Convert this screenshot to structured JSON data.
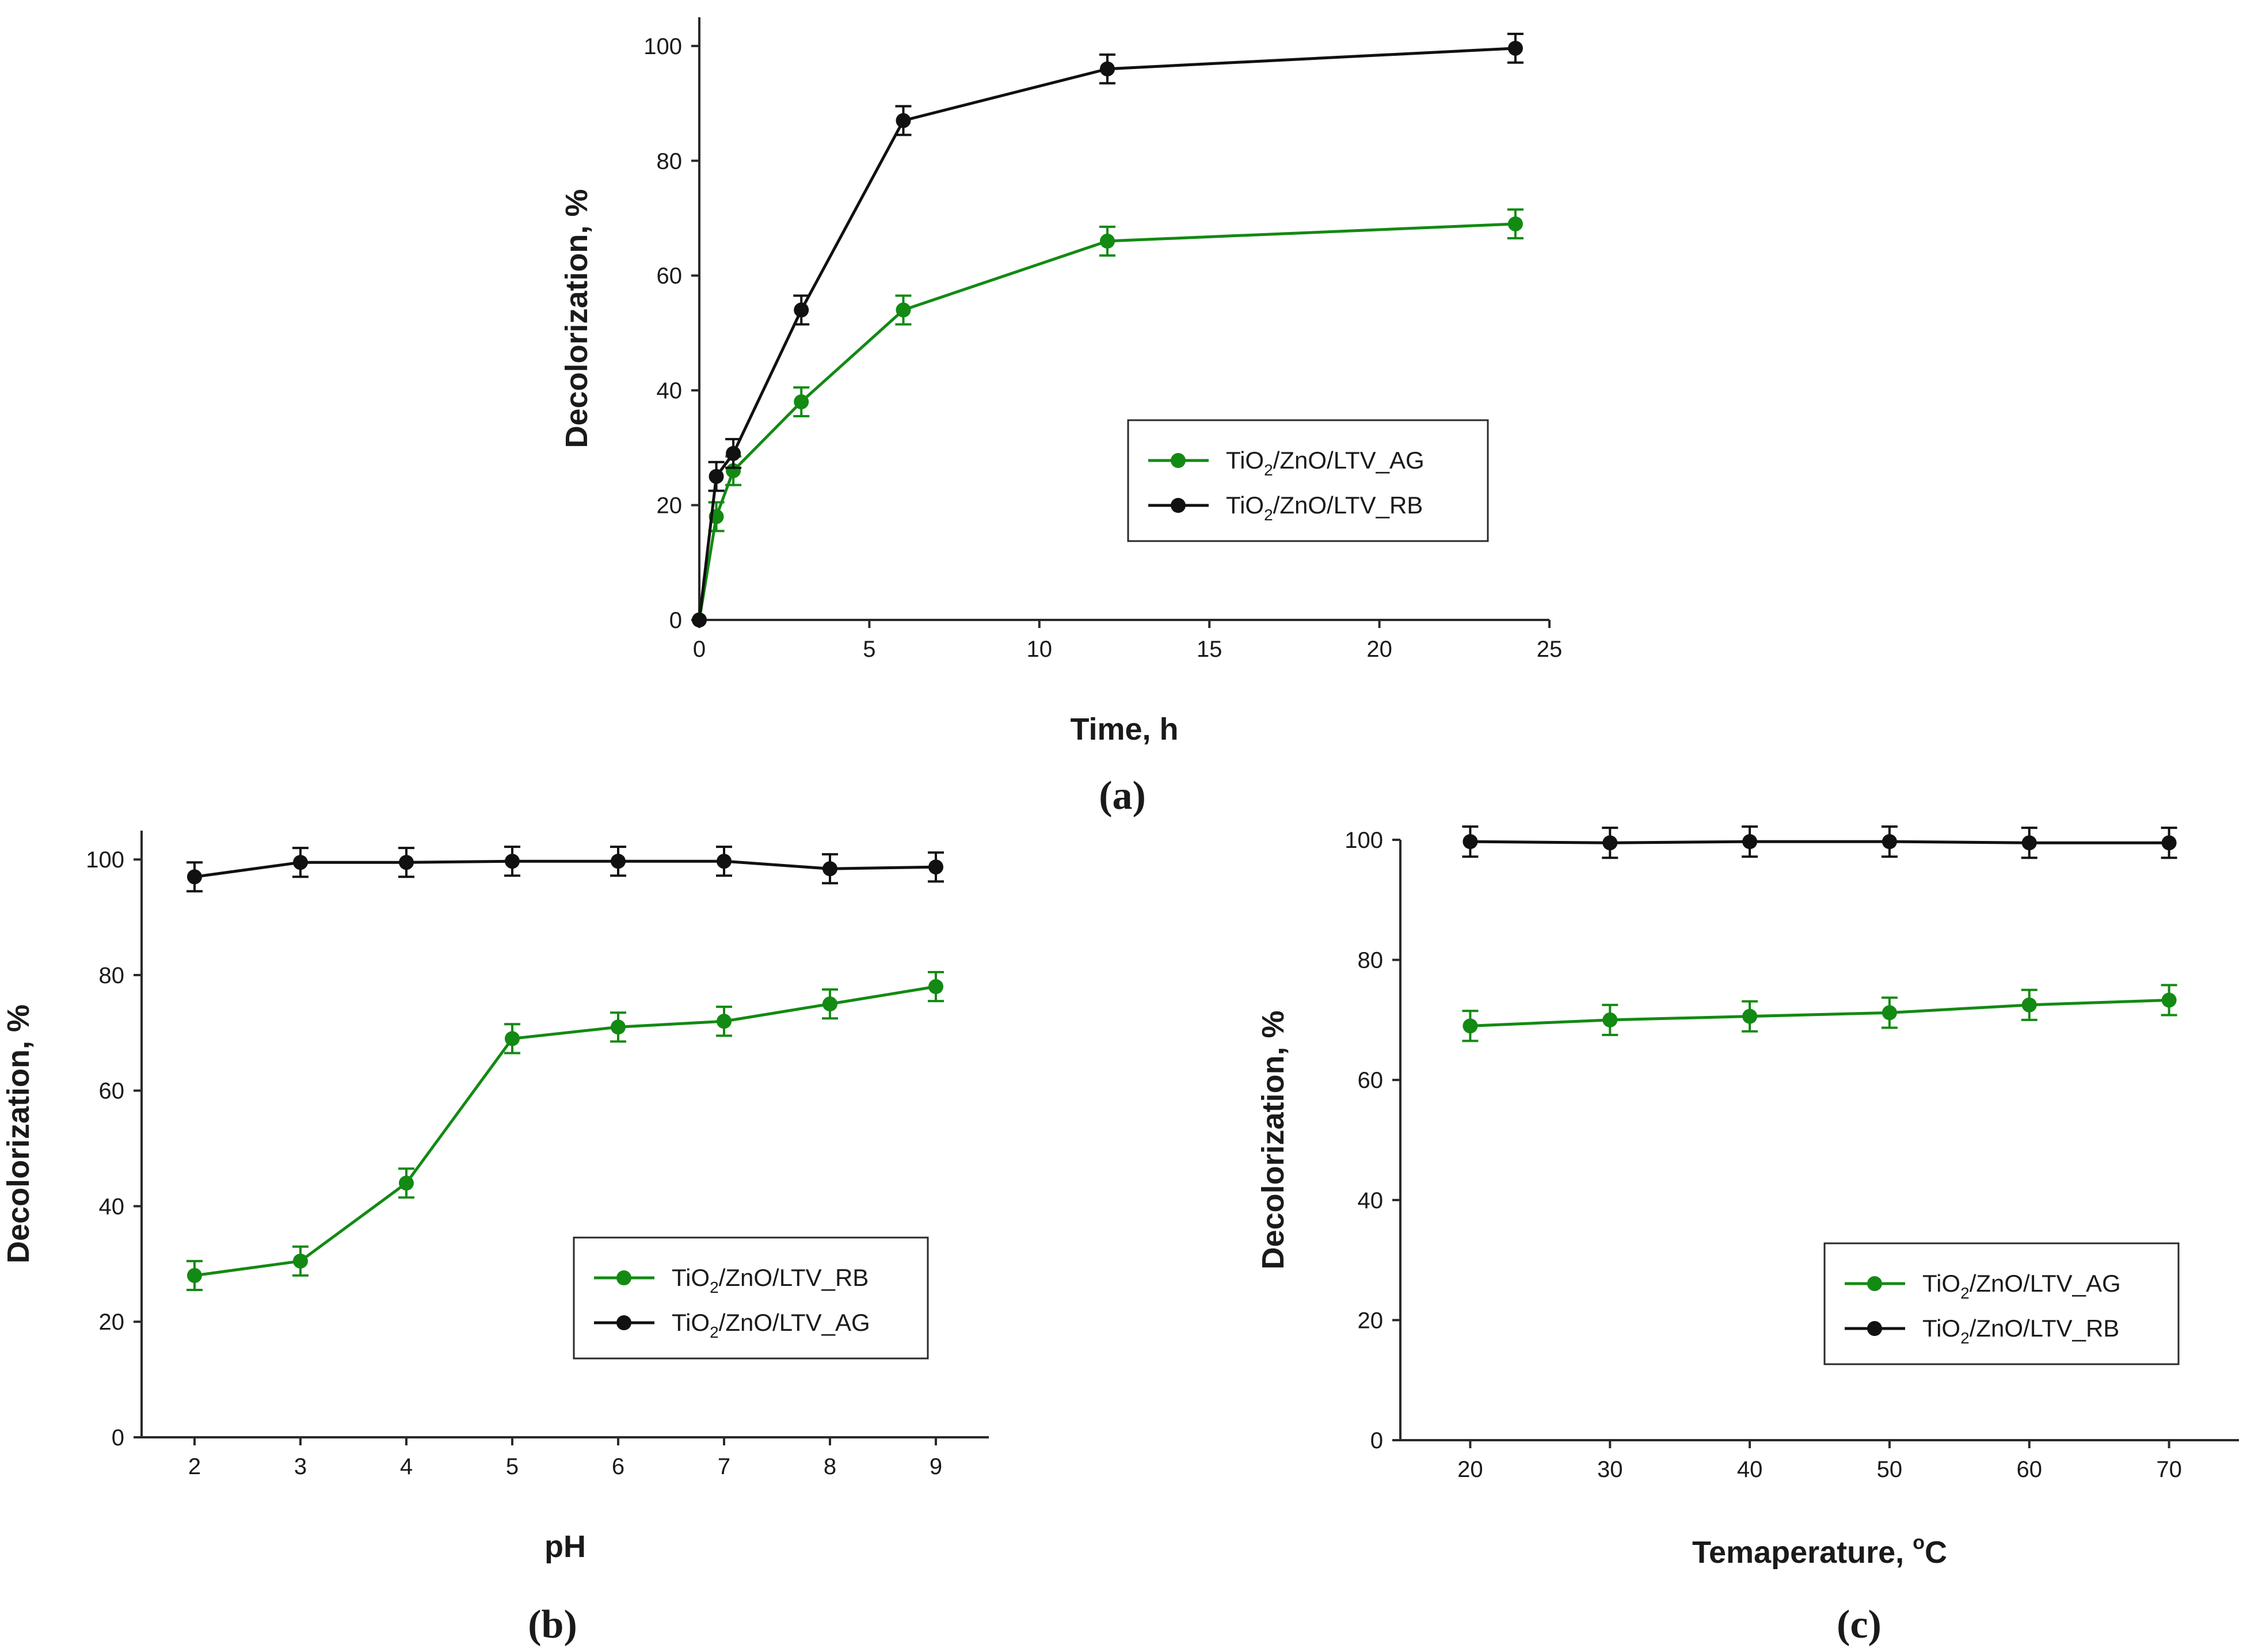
{
  "figure": {
    "colors": {
      "green": "#138a13",
      "black": "#111111",
      "axis": "#2a2a2a"
    },
    "subscript_2": "2"
  },
  "chart_data": [
    {
      "id": "a",
      "type": "line",
      "panel_label": "(a)",
      "xlabel": "Time, h",
      "ylabel": "Decolorization, %",
      "xlim": [
        0,
        25
      ],
      "ylim": [
        0,
        105
      ],
      "xticks": [
        0,
        5,
        10,
        15,
        20,
        25
      ],
      "yticks": [
        0,
        20,
        40,
        60,
        80,
        100
      ],
      "error_bar": 2.5,
      "legend_position": "center-right",
      "series": [
        {
          "legend_prefix": "TiO",
          "legend_suffix": "/ZnO/LTV_AG",
          "color": "green",
          "x": [
            0,
            0.5,
            1,
            3,
            6,
            12,
            24
          ],
          "y": [
            0,
            18,
            26,
            38,
            54,
            66,
            69
          ]
        },
        {
          "legend_prefix": "TiO",
          "legend_suffix": "/ZnO/LTV_RB",
          "color": "black",
          "x": [
            0,
            0.5,
            1,
            3,
            6,
            12,
            24
          ],
          "y": [
            0,
            25,
            29,
            54,
            87,
            96,
            99.6
          ]
        }
      ]
    },
    {
      "id": "b",
      "type": "line",
      "panel_label": "(b)",
      "xlabel": "pH",
      "ylabel": "Decolorization, %",
      "xlim": [
        1.5,
        9.5
      ],
      "ylim": [
        0,
        105
      ],
      "xticks": [
        2,
        3,
        4,
        5,
        6,
        7,
        8,
        9
      ],
      "yticks": [
        0,
        20,
        40,
        60,
        80,
        100
      ],
      "error_bar": 2.5,
      "legend_position": "center-right",
      "series": [
        {
          "legend_prefix": "TiO",
          "legend_suffix": "/ZnO/LTV_RB",
          "color": "green",
          "x": [
            2,
            3,
            4,
            5,
            6,
            7,
            8,
            9
          ],
          "y": [
            28,
            30.5,
            44,
            69,
            71,
            72,
            75,
            78
          ]
        },
        {
          "legend_prefix": "TiO",
          "legend_suffix": "/ZnO/LTV_AG",
          "color": "black",
          "x": [
            2,
            3,
            4,
            5,
            6,
            7,
            8,
            9
          ],
          "y": [
            97,
            99.5,
            99.5,
            99.7,
            99.7,
            99.7,
            98.4,
            98.7
          ]
        }
      ]
    },
    {
      "id": "c",
      "type": "line",
      "panel_label": "(c)",
      "xlabel": "Temaperature, ",
      "xlabel_unit": "C",
      "xlabel_degree": "o",
      "ylabel": "Decolorization, %",
      "xlim": [
        15,
        75
      ],
      "ylim": [
        0,
        100
      ],
      "xticks": [
        20,
        30,
        40,
        50,
        60,
        70
      ],
      "yticks": [
        0,
        20,
        40,
        60,
        80,
        100
      ],
      "error_bar": 2.5,
      "legend_position": "center-right",
      "series": [
        {
          "legend_prefix": "TiO",
          "legend_suffix": "/ZnO/LTV_AG",
          "color": "green",
          "x": [
            20,
            30,
            40,
            50,
            60,
            70
          ],
          "y": [
            69,
            70,
            70.6,
            71.2,
            72.5,
            73.3
          ]
        },
        {
          "legend_prefix": "TiO",
          "legend_suffix": "/ZnO/LTV_RB",
          "color": "black",
          "x": [
            20,
            30,
            40,
            50,
            60,
            70
          ],
          "y": [
            99.7,
            99.5,
            99.7,
            99.7,
            99.5,
            99.5
          ]
        }
      ]
    }
  ]
}
